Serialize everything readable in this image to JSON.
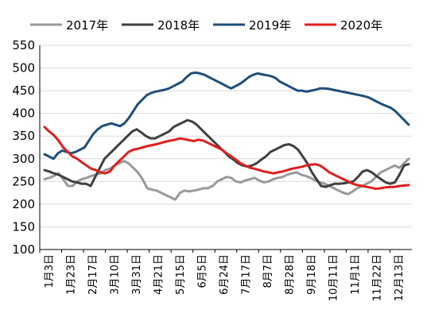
{
  "chart_data": {
    "type": "line",
    "title": "",
    "xlabel": "",
    "ylabel": "",
    "ylim": [
      100,
      550
    ],
    "yticks": [
      100,
      150,
      200,
      250,
      300,
      350,
      400,
      450,
      500,
      550
    ],
    "grid": true,
    "legend_position": "top",
    "x_tick_labels": [
      "1月3日",
      "1月23日",
      "2月17日",
      "3月10日",
      "3月31日",
      "4月21日",
      "5月15日",
      "6月5日",
      "6月24日",
      "7月17日",
      "8月7日",
      "8月28日",
      "9月18日",
      "10月11日",
      "11月1日",
      "11月22日",
      "12月13日"
    ],
    "series": [
      {
        "name": "2017年",
        "color": "#999999",
        "values": [
          255,
          258,
          262,
          268,
          255,
          240,
          240,
          250,
          255,
          258,
          262,
          265,
          268,
          275,
          278,
          285,
          290,
          295,
          290,
          280,
          270,
          255,
          235,
          232,
          230,
          225,
          220,
          215,
          210,
          225,
          230,
          228,
          230,
          232,
          235,
          235,
          240,
          250,
          255,
          260,
          258,
          250,
          248,
          252,
          255,
          258,
          252,
          248,
          250,
          255,
          258,
          260,
          265,
          268,
          270,
          265,
          262,
          258,
          252,
          248,
          245,
          240,
          235,
          230,
          225,
          222,
          228,
          235,
          240,
          245,
          250,
          260,
          270,
          275,
          280,
          285,
          280,
          290,
          300
        ]
      },
      {
        "name": "2018年",
        "color": "#404040",
        "values": [
          275,
          272,
          268,
          265,
          260,
          255,
          250,
          248,
          245,
          245,
          240,
          260,
          280,
          300,
          310,
          320,
          330,
          340,
          350,
          360,
          365,
          358,
          350,
          345,
          345,
          350,
          355,
          360,
          370,
          375,
          380,
          385,
          382,
          375,
          365,
          355,
          345,
          335,
          325,
          315,
          305,
          298,
          290,
          285,
          283,
          285,
          290,
          298,
          305,
          315,
          320,
          325,
          330,
          332,
          328,
          320,
          305,
          290,
          270,
          255,
          240,
          238,
          242,
          245,
          245,
          246,
          248,
          250,
          260,
          272,
          275,
          270,
          262,
          255,
          248,
          245,
          248,
          265,
          285,
          288
        ]
      },
      {
        "name": "2019年",
        "color": "#1f4e79",
        "values": [
          310,
          305,
          300,
          312,
          318,
          315,
          312,
          315,
          320,
          325,
          340,
          355,
          365,
          372,
          375,
          378,
          375,
          372,
          378,
          390,
          405,
          420,
          430,
          440,
          445,
          448,
          450,
          452,
          455,
          460,
          465,
          470,
          480,
          488,
          490,
          488,
          485,
          480,
          475,
          470,
          465,
          460,
          455,
          460,
          465,
          472,
          480,
          485,
          488,
          486,
          484,
          482,
          478,
          470,
          465,
          460,
          455,
          450,
          450,
          448,
          450,
          452,
          455,
          455,
          454,
          452,
          450,
          448,
          446,
          444,
          442,
          440,
          438,
          435,
          430,
          425,
          420,
          416,
          412,
          405,
          395,
          385,
          375
        ]
      },
      {
        "name": "2020年",
        "color": "#e01e1e",
        "values": [
          370,
          360,
          352,
          340,
          325,
          315,
          305,
          300,
          292,
          285,
          278,
          275,
          270,
          268,
          272,
          285,
          295,
          305,
          315,
          320,
          322,
          325,
          328,
          330,
          332,
          335,
          338,
          340,
          342,
          345,
          343,
          341,
          339,
          342,
          340,
          335,
          330,
          325,
          320,
          312,
          305,
          298,
          290,
          285,
          280,
          278,
          275,
          272,
          270,
          268,
          270,
          272,
          275,
          278,
          280,
          282,
          285,
          287,
          288,
          285,
          278,
          270,
          265,
          260,
          255,
          250,
          245,
          242,
          240,
          238,
          236,
          234,
          235,
          237,
          238,
          238,
          240,
          241,
          242
        ]
      }
    ]
  }
}
